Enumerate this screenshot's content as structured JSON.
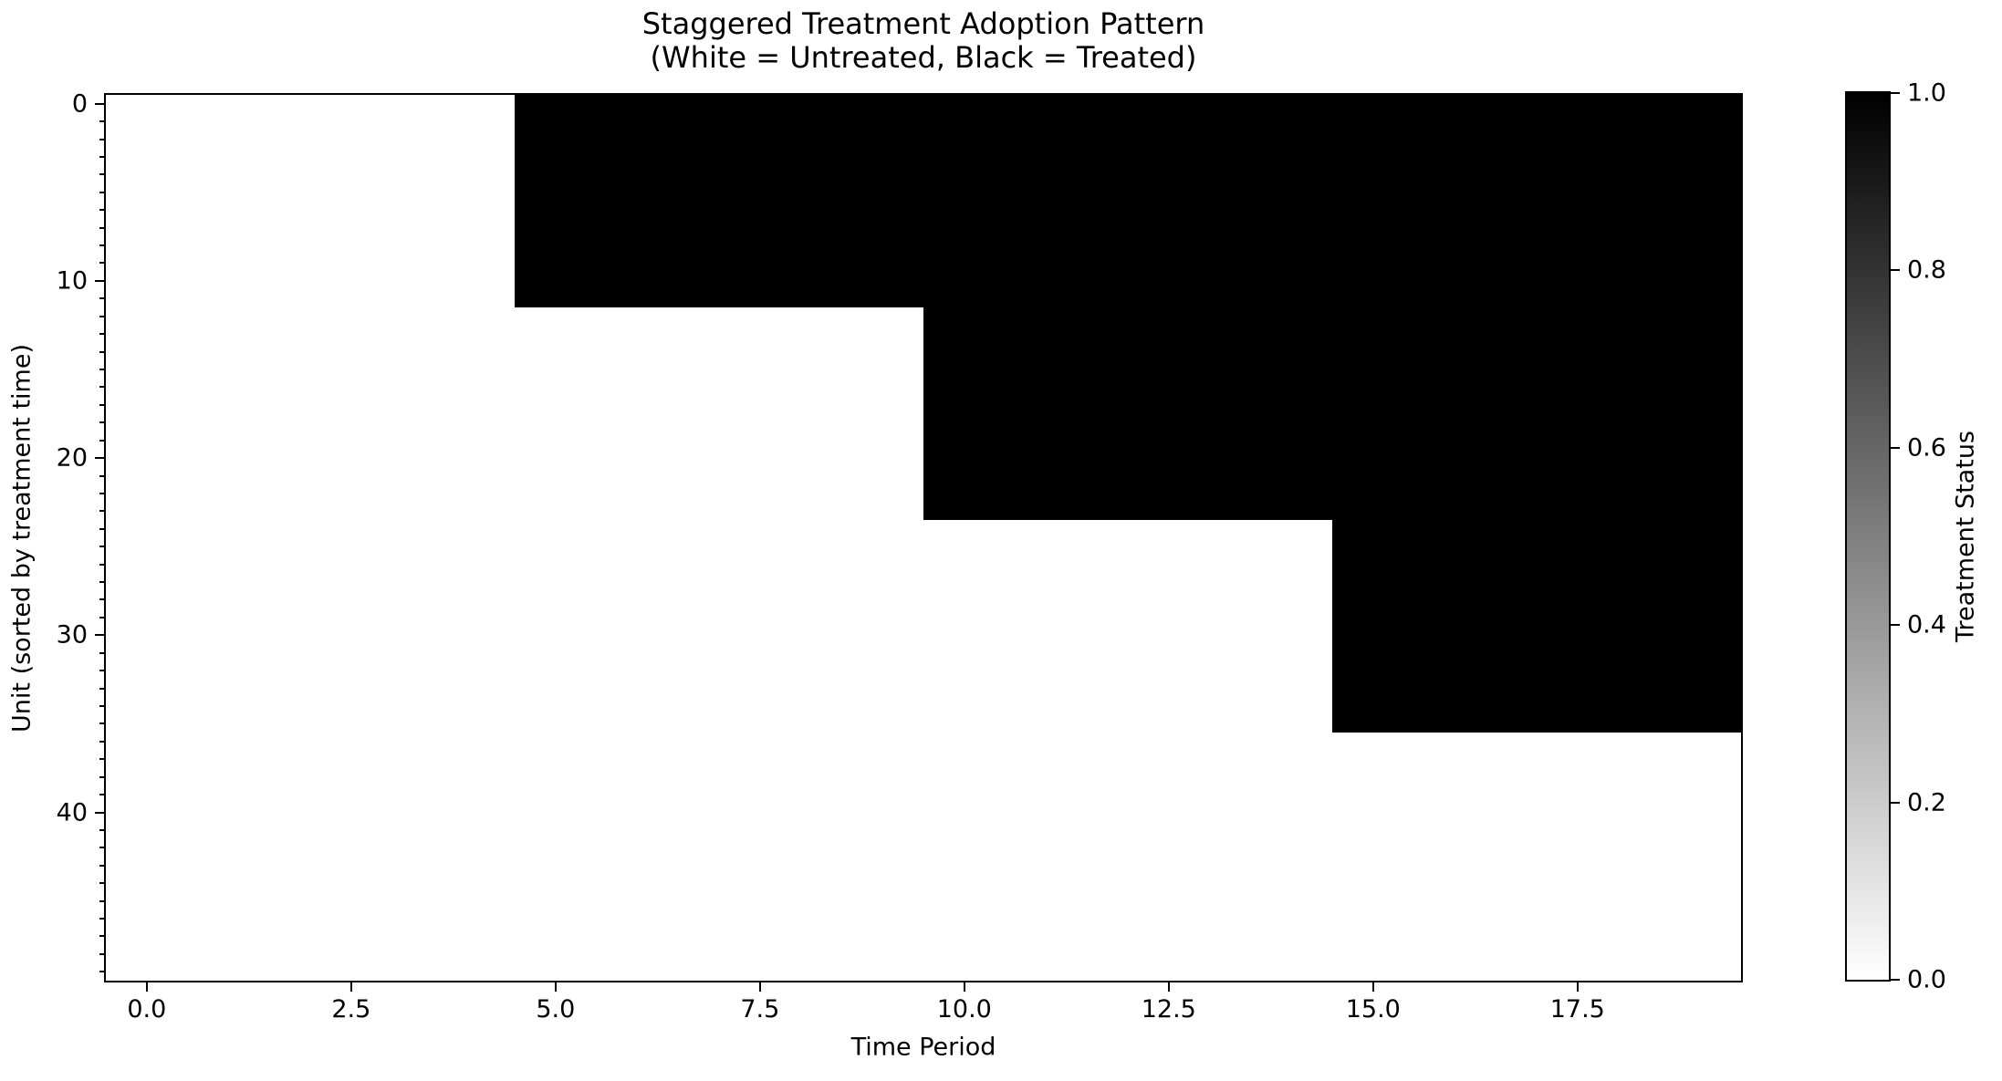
{
  "chart_data": {
    "type": "heatmap",
    "title": "Staggered Treatment Adoption Pattern",
    "subtitle": "(White = Untreated, Black = Treated)",
    "xlabel": "Time Period",
    "ylabel": "Unit (sorted by treatment time)",
    "n_units": 50,
    "n_periods": 20,
    "xlim": [
      -0.5,
      19.5
    ],
    "ylim": [
      49.5,
      -0.5
    ],
    "y_axis_inverted": true,
    "grid": false,
    "x_ticks": [
      {
        "v": 0,
        "label": "0.0"
      },
      {
        "v": 2.5,
        "label": "2.5"
      },
      {
        "v": 5,
        "label": "5.0"
      },
      {
        "v": 7.5,
        "label": "7.5"
      },
      {
        "v": 10,
        "label": "10.0"
      },
      {
        "v": 12.5,
        "label": "12.5"
      },
      {
        "v": 15,
        "label": "15.0"
      },
      {
        "v": 17.5,
        "label": "17.5"
      }
    ],
    "y_ticks": [
      {
        "v": 0,
        "label": "0"
      },
      {
        "v": 10,
        "label": "10"
      },
      {
        "v": 20,
        "label": "20"
      },
      {
        "v": 30,
        "label": "30"
      },
      {
        "v": 40,
        "label": "40"
      }
    ],
    "y_minor_tick_step": 1,
    "x_minor_ticks": false,
    "cell_values": {
      "treated": 1,
      "untreated": 0
    },
    "cohorts": [
      {
        "first_unit": 0,
        "last_unit": 11,
        "treatment_start_period": 5,
        "description": "units 0-11 treated from period 5 through 19"
      },
      {
        "first_unit": 12,
        "last_unit": 23,
        "treatment_start_period": 10,
        "description": "units 12-23 treated from period 10 through 19"
      },
      {
        "first_unit": 24,
        "last_unit": 35,
        "treatment_start_period": 15,
        "description": "units 24-35 treated from period 15 through 19"
      },
      {
        "first_unit": 36,
        "last_unit": 49,
        "treatment_start_period": null,
        "description": "units 36-49 never treated"
      }
    ],
    "colors": {
      "treated": "#000000",
      "untreated": "#ffffff",
      "axis": "#000000"
    },
    "colorbar": {
      "label": "Treatment Status",
      "min": 0.0,
      "max": 1.0,
      "ticks": [
        {
          "v": 1.0,
          "label": "1.0"
        },
        {
          "v": 0.8,
          "label": "0.8"
        },
        {
          "v": 0.6,
          "label": "0.6"
        },
        {
          "v": 0.4,
          "label": "0.4"
        },
        {
          "v": 0.2,
          "label": "0.2"
        },
        {
          "v": 0.0,
          "label": "0.0"
        }
      ],
      "max_color": "#000000",
      "min_color": "#ffffff"
    }
  }
}
